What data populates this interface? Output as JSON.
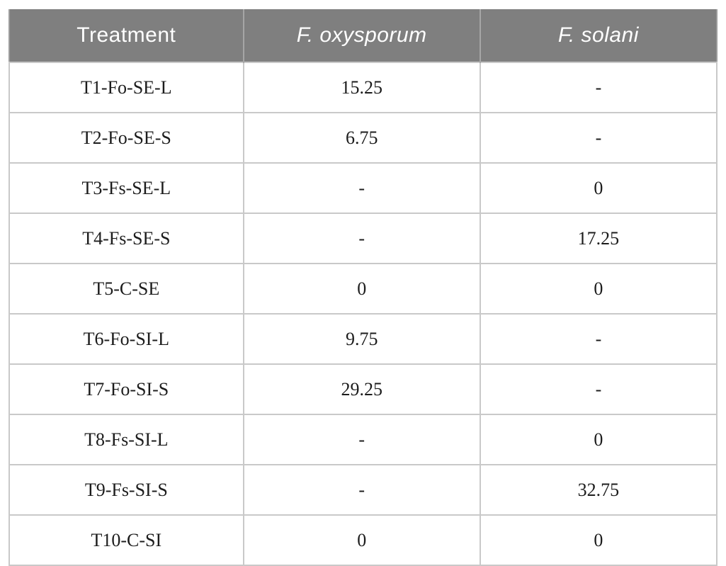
{
  "table": {
    "header": {
      "treatment": "Treatment",
      "f_oxysporum": "F. oxysporum",
      "f_solani": "F. solani"
    },
    "rows": [
      [
        "T1-Fo-SE-L",
        "15.25",
        "-"
      ],
      [
        "T2-Fo-SE-S",
        "6.75",
        "-"
      ],
      [
        "T3-Fs-SE-L",
        "-",
        "0"
      ],
      [
        "T4-Fs-SE-S",
        "-",
        "17.25"
      ],
      [
        "T5-C-SE",
        "0",
        "0"
      ],
      [
        "T6-Fo-SI-L",
        "9.75",
        "-"
      ],
      [
        "T7-Fo-SI-S",
        "29.25",
        "-"
      ],
      [
        "T8-Fs-SI-L",
        "-",
        "0"
      ],
      [
        "T9-Fs-SI-S",
        "-",
        "32.75"
      ],
      [
        "T10-C-SI",
        "0",
        "0"
      ]
    ],
    "colors": {
      "header_background": "#7f7f7f",
      "header_text": "#ffffff",
      "header_divider": "#a6a6a6",
      "body_text": "#1c1c1c",
      "cell_border": "#c9c9c9",
      "outer_border": "#9c9c9c",
      "page_background": "#ffffff"
    }
  }
}
